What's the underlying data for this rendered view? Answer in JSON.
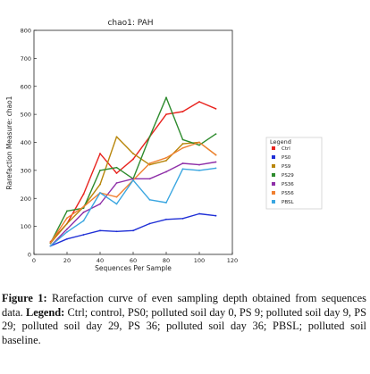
{
  "chart_data": {
    "type": "line",
    "title": "chao1: PAH",
    "xlabel": "Sequences Per Sample",
    "ylabel": "Rarefaction Measure: chao1",
    "xlim": [
      0,
      120
    ],
    "ylim": [
      0,
      800
    ],
    "xticks": [
      0,
      20,
      40,
      60,
      80,
      100,
      120
    ],
    "yticks": [
      0,
      100,
      200,
      300,
      400,
      500,
      600,
      700,
      800
    ],
    "grid": false,
    "legend_title": "Legend",
    "legend_position": "right",
    "x": [
      10,
      20,
      30,
      40,
      50,
      60,
      70,
      80,
      90,
      100,
      110
    ],
    "series": [
      {
        "name": "Ctrl",
        "color": "#e8231e",
        "values": [
          45,
          110,
          215,
          360,
          290,
          340,
          420,
          500,
          510,
          545,
          520
        ]
      },
      {
        "name": "PS0",
        "color": "#1f2fd6",
        "values": [
          30,
          55,
          70,
          85,
          82,
          85,
          110,
          125,
          128,
          145,
          138
        ]
      },
      {
        "name": "PS9",
        "color": "#b8860b",
        "values": [
          40,
          110,
          170,
          250,
          420,
          360,
          320,
          335,
          395,
          400,
          355
        ]
      },
      {
        "name": "PS29",
        "color": "#2e8b2e",
        "values": [
          40,
          155,
          165,
          300,
          310,
          270,
          420,
          560,
          410,
          390,
          430
        ]
      },
      {
        "name": "PS36",
        "color": "#8e2fa8",
        "values": [
          30,
          90,
          150,
          180,
          255,
          270,
          270,
          295,
          325,
          320,
          330
        ]
      },
      {
        "name": "PS56",
        "color": "#f08030",
        "values": [
          42,
          130,
          170,
          220,
          205,
          265,
          325,
          345,
          380,
          400,
          355
        ]
      },
      {
        "name": "PBSL",
        "color": "#3aa6e0",
        "values": [
          30,
          80,
          120,
          220,
          180,
          265,
          195,
          185,
          305,
          300,
          308
        ]
      }
    ]
  },
  "caption": {
    "label": "Figure 1:",
    "text": " Rarefaction curve of even sampling depth obtained from sequences data. ",
    "legend_label": "Legend:",
    "legend_text": " Ctrl; control, PS0; polluted soil day 0, PS 9; polluted soil day 9, PS 29; polluted soil day 29, PS 36; polluted soil day 36; PBSL; polluted soil baseline."
  }
}
